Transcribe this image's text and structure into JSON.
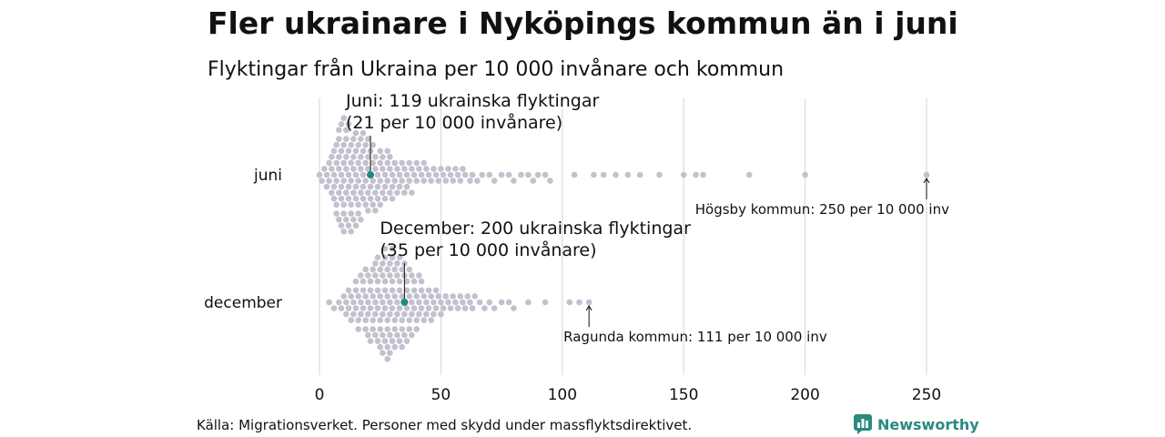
{
  "chart_data": {
    "type": "scatter",
    "title": "Fler ukrainare i Nyköpings kommun än i juni",
    "subtitle": "Flyktingar från Ukraina per 10 000 invånare och kommun",
    "xlabel": "",
    "ylabel": "",
    "xlim": [
      0,
      250
    ],
    "x_ticks": [
      "0",
      "50",
      "100",
      "150",
      "200",
      "250"
    ],
    "grid": true,
    "categories": [
      "juni",
      "december"
    ],
    "series": [
      {
        "category": "juni",
        "values": [
          0,
          1,
          2,
          3,
          3,
          4,
          4,
          5,
          5,
          5,
          6,
          6,
          6,
          6,
          7,
          7,
          7,
          7,
          7,
          8,
          8,
          8,
          8,
          8,
          8,
          9,
          9,
          9,
          9,
          9,
          9,
          10,
          10,
          10,
          10,
          10,
          10,
          10,
          11,
          11,
          11,
          11,
          11,
          11,
          12,
          12,
          12,
          12,
          12,
          12,
          13,
          13,
          13,
          13,
          13,
          13,
          14,
          14,
          14,
          14,
          14,
          15,
          15,
          15,
          15,
          15,
          15,
          16,
          16,
          16,
          16,
          16,
          17,
          17,
          17,
          17,
          17,
          18,
          18,
          18,
          18,
          18,
          19,
          19,
          19,
          19,
          20,
          20,
          20,
          20,
          20,
          21,
          21,
          21,
          21,
          22,
          22,
          22,
          22,
          23,
          23,
          23,
          23,
          24,
          24,
          24,
          25,
          25,
          25,
          25,
          26,
          26,
          26,
          27,
          27,
          27,
          28,
          28,
          28,
          29,
          29,
          29,
          30,
          30,
          30,
          31,
          31,
          32,
          32,
          33,
          33,
          34,
          34,
          35,
          35,
          36,
          36,
          37,
          37,
          38,
          38,
          39,
          40,
          40,
          41,
          42,
          43,
          43,
          44,
          45,
          46,
          47,
          48,
          49,
          50,
          51,
          52,
          53,
          54,
          55,
          56,
          57,
          58,
          59,
          60,
          62,
          63,
          65,
          67,
          70,
          72,
          75,
          78,
          80,
          83,
          86,
          88,
          90,
          93,
          95,
          105,
          113,
          117,
          122,
          127,
          132,
          140,
          150,
          155,
          158,
          177,
          200,
          250
        ],
        "highlight": {
          "value": 21,
          "label_line1": "Juni: 119 ukrainska flyktingar",
          "label_line2": "(21 per 10 000 invånare)"
        },
        "max_annotation": {
          "value": 250,
          "label": "Högsby kommun: 250 per 10 000 inv"
        }
      },
      {
        "category": "december",
        "values": [
          4,
          6,
          8,
          9,
          10,
          11,
          11,
          12,
          12,
          13,
          13,
          14,
          14,
          15,
          15,
          15,
          16,
          16,
          16,
          17,
          17,
          17,
          18,
          18,
          18,
          19,
          19,
          19,
          19,
          20,
          20,
          20,
          20,
          21,
          21,
          21,
          21,
          22,
          22,
          22,
          22,
          23,
          23,
          23,
          23,
          23,
          24,
          24,
          24,
          24,
          24,
          25,
          25,
          25,
          25,
          25,
          26,
          26,
          26,
          26,
          26,
          26,
          27,
          27,
          27,
          27,
          27,
          27,
          28,
          28,
          28,
          28,
          28,
          28,
          29,
          29,
          29,
          29,
          29,
          29,
          30,
          30,
          30,
          30,
          30,
          30,
          31,
          31,
          31,
          31,
          31,
          32,
          32,
          32,
          32,
          32,
          33,
          33,
          33,
          33,
          33,
          34,
          34,
          34,
          34,
          34,
          35,
          35,
          35,
          35,
          35,
          36,
          36,
          36,
          36,
          37,
          37,
          37,
          37,
          38,
          38,
          38,
          38,
          39,
          39,
          39,
          40,
          40,
          40,
          41,
          41,
          41,
          42,
          42,
          42,
          43,
          43,
          44,
          44,
          45,
          45,
          46,
          46,
          47,
          47,
          48,
          48,
          49,
          50,
          50,
          51,
          52,
          53,
          54,
          55,
          56,
          57,
          58,
          59,
          60,
          61,
          62,
          63,
          64,
          66,
          68,
          70,
          72,
          75,
          78,
          80,
          86,
          93,
          103,
          107,
          111
        ],
        "highlight": {
          "value": 35,
          "label_line1": "December: 200 ukrainska flyktingar",
          "label_line2": "(35 per 10 000 invånare)"
        },
        "max_annotation": {
          "value": 111,
          "label": "Ragunda kommun: 111 per 10 000 inv"
        }
      }
    ],
    "colors": {
      "dots": "#c3c1ce",
      "highlight": "#1f8a80",
      "grid": "#d6d6d6",
      "text": "#111111"
    },
    "source": "Källa: Migrationsverket. Personer med skydd under massflyktsdirektivet."
  },
  "brand": {
    "name": "Newsworthy",
    "icon": "bar-chart-icon",
    "color": "#2a8a7f"
  }
}
